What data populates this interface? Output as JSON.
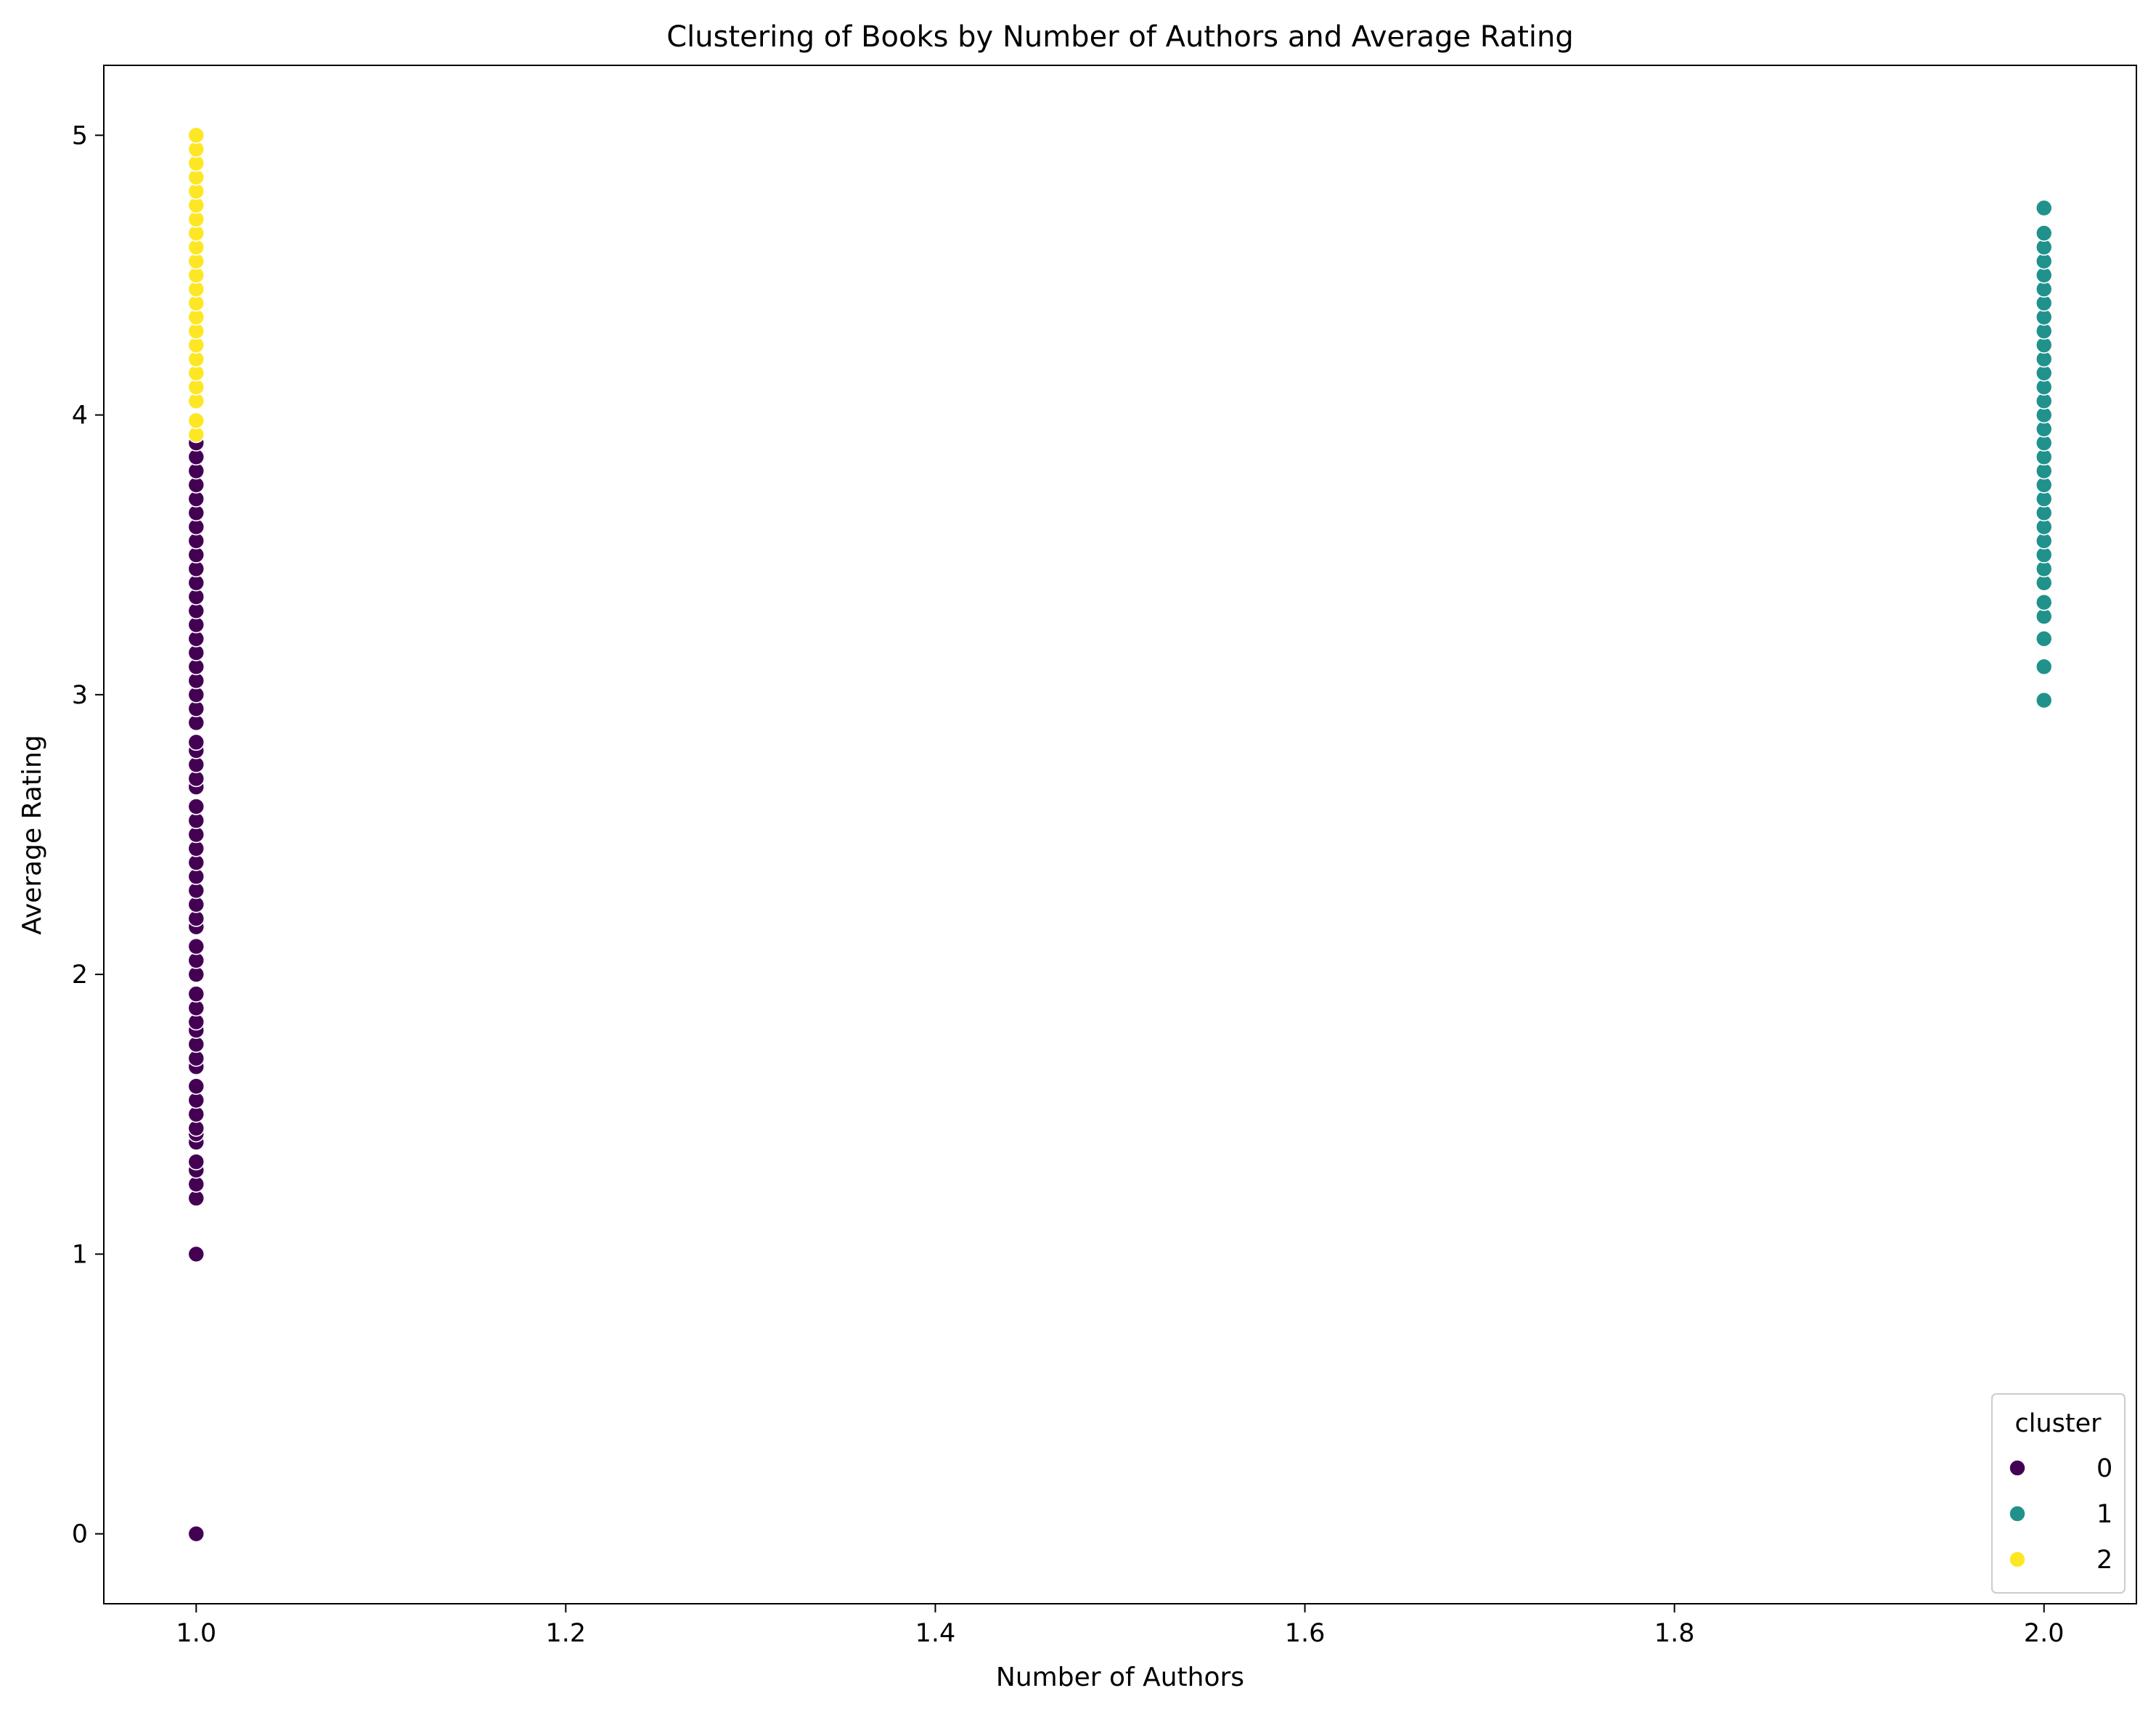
{
  "chart_data": {
    "type": "scatter",
    "title": "Clustering of Books by Number of Authors and Average Rating",
    "xlabel": "Number of Authors",
    "ylabel": "Average Rating",
    "xlim": [
      0.95,
      2.05
    ],
    "ylim": [
      -0.25,
      5.25
    ],
    "grid": false,
    "xticks": [
      1.0,
      1.2,
      1.4,
      1.6,
      1.8,
      2.0
    ],
    "xtick_labels": [
      "1.0",
      "1.2",
      "1.4",
      "1.6",
      "1.8",
      "2.0"
    ],
    "yticks": [
      0,
      1,
      2,
      3,
      4,
      5
    ],
    "ytick_labels": [
      "0",
      "1",
      "2",
      "3",
      "4",
      "5"
    ],
    "legend": {
      "title": "cluster",
      "placement": "lower-right",
      "entries": [
        "0",
        "1",
        "2"
      ]
    },
    "colors": [
      "#440154",
      "#21918c",
      "#fde725"
    ],
    "series": [
      {
        "name": "0",
        "color": "#440154",
        "x": 1.0,
        "y": [
          0.0,
          1.0,
          1.2,
          1.25,
          1.3,
          1.33,
          1.4,
          1.43,
          1.45,
          1.5,
          1.55,
          1.6,
          1.67,
          1.7,
          1.75,
          1.8,
          1.83,
          1.88,
          1.93,
          2.0,
          2.05,
          2.1,
          2.17,
          2.2,
          2.25,
          2.3,
          2.35,
          2.4,
          2.45,
          2.5,
          2.55,
          2.6,
          2.67,
          2.7,
          2.75,
          2.8,
          2.83,
          2.9,
          2.95,
          3.0,
          3.05,
          3.1,
          3.15,
          3.2,
          3.25,
          3.3,
          3.35,
          3.4,
          3.45,
          3.5,
          3.55,
          3.6,
          3.65,
          3.7,
          3.75,
          3.8,
          3.85,
          3.9
        ]
      },
      {
        "name": "1",
        "color": "#21918c",
        "x": 2.0,
        "y": [
          2.98,
          3.1,
          3.2,
          3.28,
          3.33,
          3.4,
          3.45,
          3.5,
          3.55,
          3.6,
          3.65,
          3.7,
          3.75,
          3.8,
          3.85,
          3.9,
          3.95,
          4.0,
          4.05,
          4.1,
          4.15,
          4.2,
          4.25,
          4.3,
          4.35,
          4.4,
          4.45,
          4.5,
          4.55,
          4.6,
          4.65,
          4.74
        ]
      },
      {
        "name": "2",
        "color": "#fde725",
        "x": 1.0,
        "y": [
          3.93,
          3.98,
          4.05,
          4.1,
          4.15,
          4.2,
          4.25,
          4.3,
          4.35,
          4.4,
          4.45,
          4.5,
          4.55,
          4.6,
          4.65,
          4.7,
          4.75,
          4.8,
          4.85,
          4.9,
          4.95,
          5.0
        ]
      }
    ]
  }
}
